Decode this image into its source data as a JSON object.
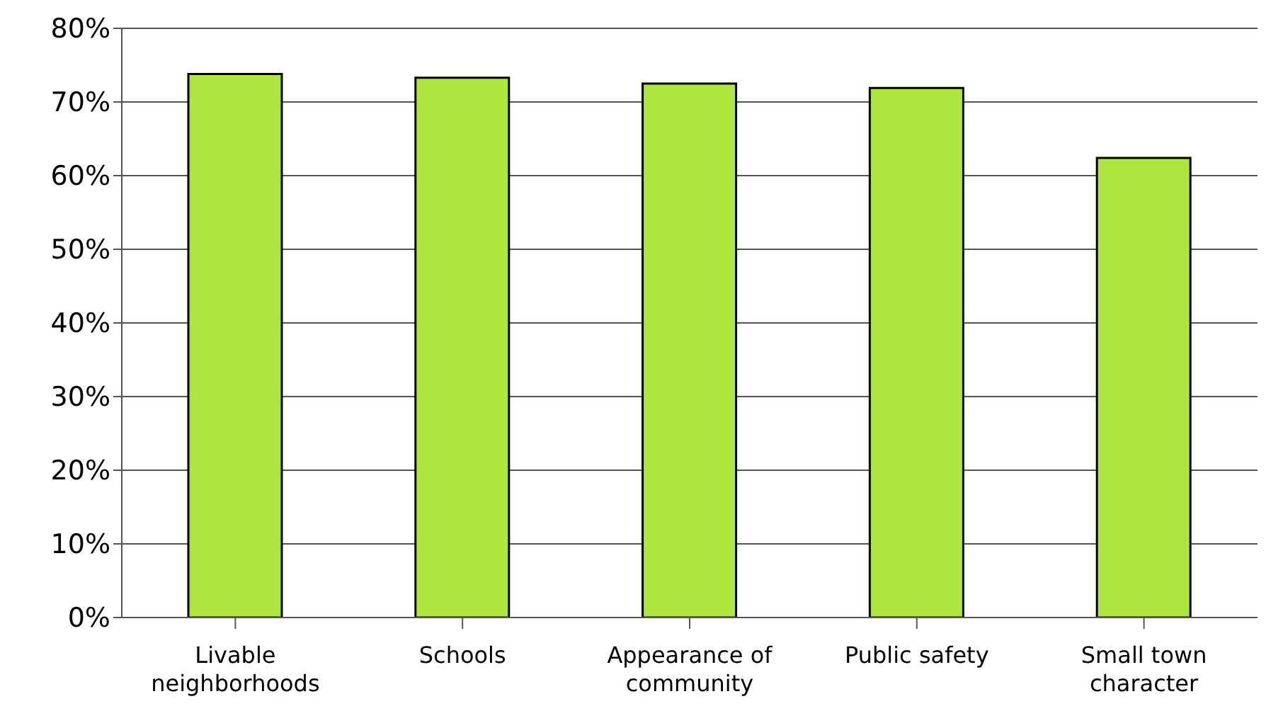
{
  "chart_data": {
    "type": "bar",
    "categories": [
      "Livable neighborhoods",
      "Schools",
      "Appearance of community",
      "Public safety",
      "Small town character"
    ],
    "values": [
      73.8,
      73.3,
      72.5,
      71.9,
      62.4
    ],
    "color": "#aee53f",
    "ylim": [
      0,
      80
    ],
    "yticks": [
      {
        "value": 0,
        "label": "0%"
      },
      {
        "value": 10,
        "label": "10%"
      },
      {
        "value": 20,
        "label": "20%"
      },
      {
        "value": 30,
        "label": "30%"
      },
      {
        "value": 40,
        "label": "40%"
      },
      {
        "value": 50,
        "label": "50%"
      },
      {
        "value": 60,
        "label": "60%"
      },
      {
        "value": 70,
        "label": "70%"
      },
      {
        "value": 80,
        "label": "80%"
      }
    ],
    "grid": "y"
  }
}
